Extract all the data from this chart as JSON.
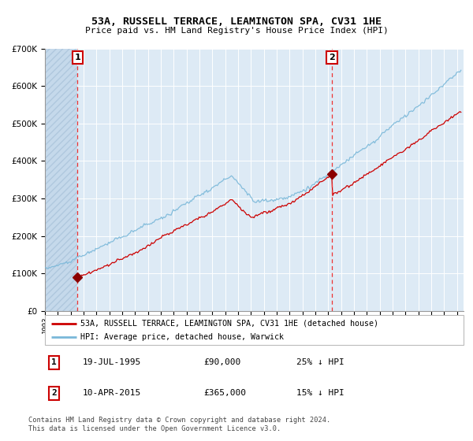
{
  "title": "53A, RUSSELL TERRACE, LEAMINGTON SPA, CV31 1HE",
  "subtitle": "Price paid vs. HM Land Registry's House Price Index (HPI)",
  "legend_line1": "53A, RUSSELL TERRACE, LEAMINGTON SPA, CV31 1HE (detached house)",
  "legend_line2": "HPI: Average price, detached house, Warwick",
  "footnote": "Contains HM Land Registry data © Crown copyright and database right 2024.\nThis data is licensed under the Open Government Licence v3.0.",
  "purchase1_date": 1995.54,
  "purchase1_price": 90000,
  "purchase1_note": "19-JUL-1995",
  "purchase1_amount": "£90,000",
  "purchase1_hpi": "25% ↓ HPI",
  "purchase2_date": 2015.27,
  "purchase2_price": 365000,
  "purchase2_note": "10-APR-2015",
  "purchase2_amount": "£365,000",
  "purchase2_hpi": "15% ↓ HPI",
  "hpi_color": "#7ab8d9",
  "price_color": "#cc0000",
  "marker_color": "#8b0000",
  "dashed_line_color": "#ee3333",
  "background_chart": "#ddeaf5",
  "background_hatch_color": "#c5d9eb",
  "ylim": [
    0,
    700000
  ],
  "xlim_start": 1993.0,
  "xlim_end": 2025.5
}
